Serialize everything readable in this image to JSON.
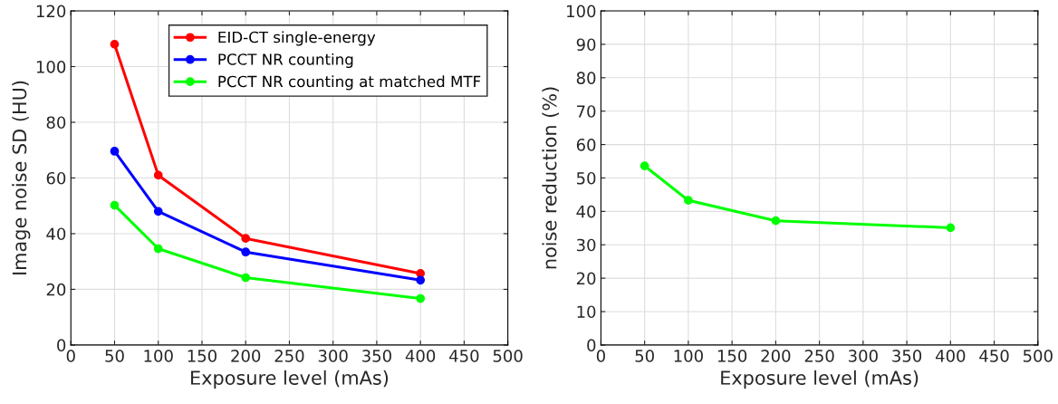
{
  "chart_data": [
    {
      "type": "line",
      "xlabel": "Exposure level (mAs)",
      "ylabel": "Image noise SD (HU)",
      "x": [
        50,
        100,
        200,
        400
      ],
      "series": [
        {
          "name": "EID-CT single-energy",
          "color": "#ff0000",
          "values": [
            108,
            61,
            38.3,
            25.7
          ]
        },
        {
          "name": "PCCT NR counting",
          "color": "#0000ff",
          "values": [
            69.6,
            48,
            33.4,
            23.3
          ]
        },
        {
          "name": "PCCT NR counting at matched MTF",
          "color": "#00ff00",
          "values": [
            50.2,
            34.6,
            24.2,
            16.7
          ]
        }
      ],
      "xlim": [
        0,
        500
      ],
      "xticks": [
        0,
        50,
        100,
        150,
        200,
        250,
        300,
        350,
        400,
        450,
        500
      ],
      "ylim": [
        0,
        120
      ],
      "yticks": [
        0,
        20,
        40,
        60,
        80,
        100,
        120
      ],
      "grid": true,
      "legend": "top right",
      "marker": "circle",
      "line_style": "solid"
    },
    {
      "type": "line",
      "xlabel": "Exposure level (mAs)",
      "ylabel": "noise reduction (%)",
      "x": [
        50,
        100,
        200,
        400
      ],
      "series": [
        {
          "color": "#00ff00",
          "values": [
            53.6,
            43.3,
            37.2,
            35.1
          ]
        }
      ],
      "xlim": [
        0,
        500
      ],
      "xticks": [
        0,
        50,
        100,
        150,
        200,
        250,
        300,
        350,
        400,
        450,
        500
      ],
      "ylim": [
        0,
        100
      ],
      "yticks": [
        0,
        10,
        20,
        30,
        40,
        50,
        60,
        70,
        80,
        90,
        100
      ],
      "grid": true,
      "marker": "circle",
      "line_style": "solid"
    }
  ]
}
